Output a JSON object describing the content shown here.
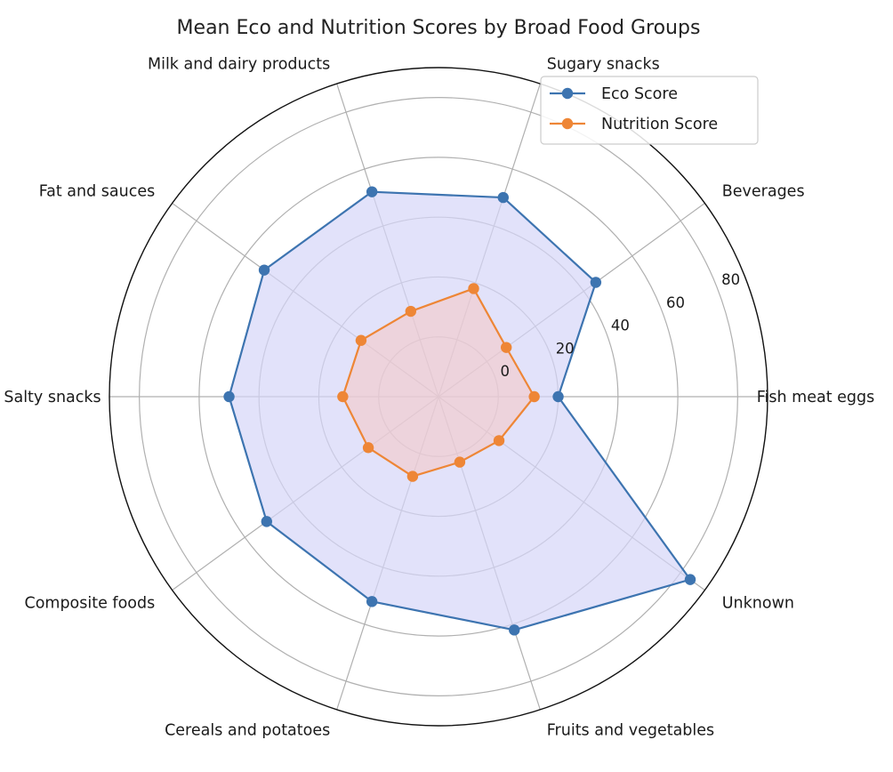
{
  "chart_data": {
    "type": "radar",
    "title": "Mean Eco and Nutrition Scores by Broad Food Groups",
    "categories": [
      "Fish meat eggs",
      "Beverages",
      "Sugary snacks",
      "Milk and dairy products",
      "Fat and sauces",
      "Salty snacks",
      "Composite foods",
      "Cereals and potatoes",
      "Fruits and vegetables",
      "Unknown"
    ],
    "series": [
      {
        "name": "Eco Score",
        "values": [
          20,
          45,
          50,
          52,
          52,
          50,
          51,
          52,
          62,
          84
        ],
        "color": "#3d74b0",
        "fill": "#d6d6f8"
      },
      {
        "name": "Nutrition Score",
        "values": [
          12,
          8,
          18,
          10,
          12,
          12,
          9,
          8,
          3,
          5
        ],
        "color": "#ee8636",
        "fill": "#f6c7c3"
      }
    ],
    "r_ticks": [
      0,
      20,
      40,
      60,
      80
    ],
    "r_tick_labels": [
      "0",
      "20",
      "40",
      "60",
      "80"
    ],
    "rlim": [
      -20,
      90
    ],
    "grid": true,
    "legend_position": "top-right"
  }
}
